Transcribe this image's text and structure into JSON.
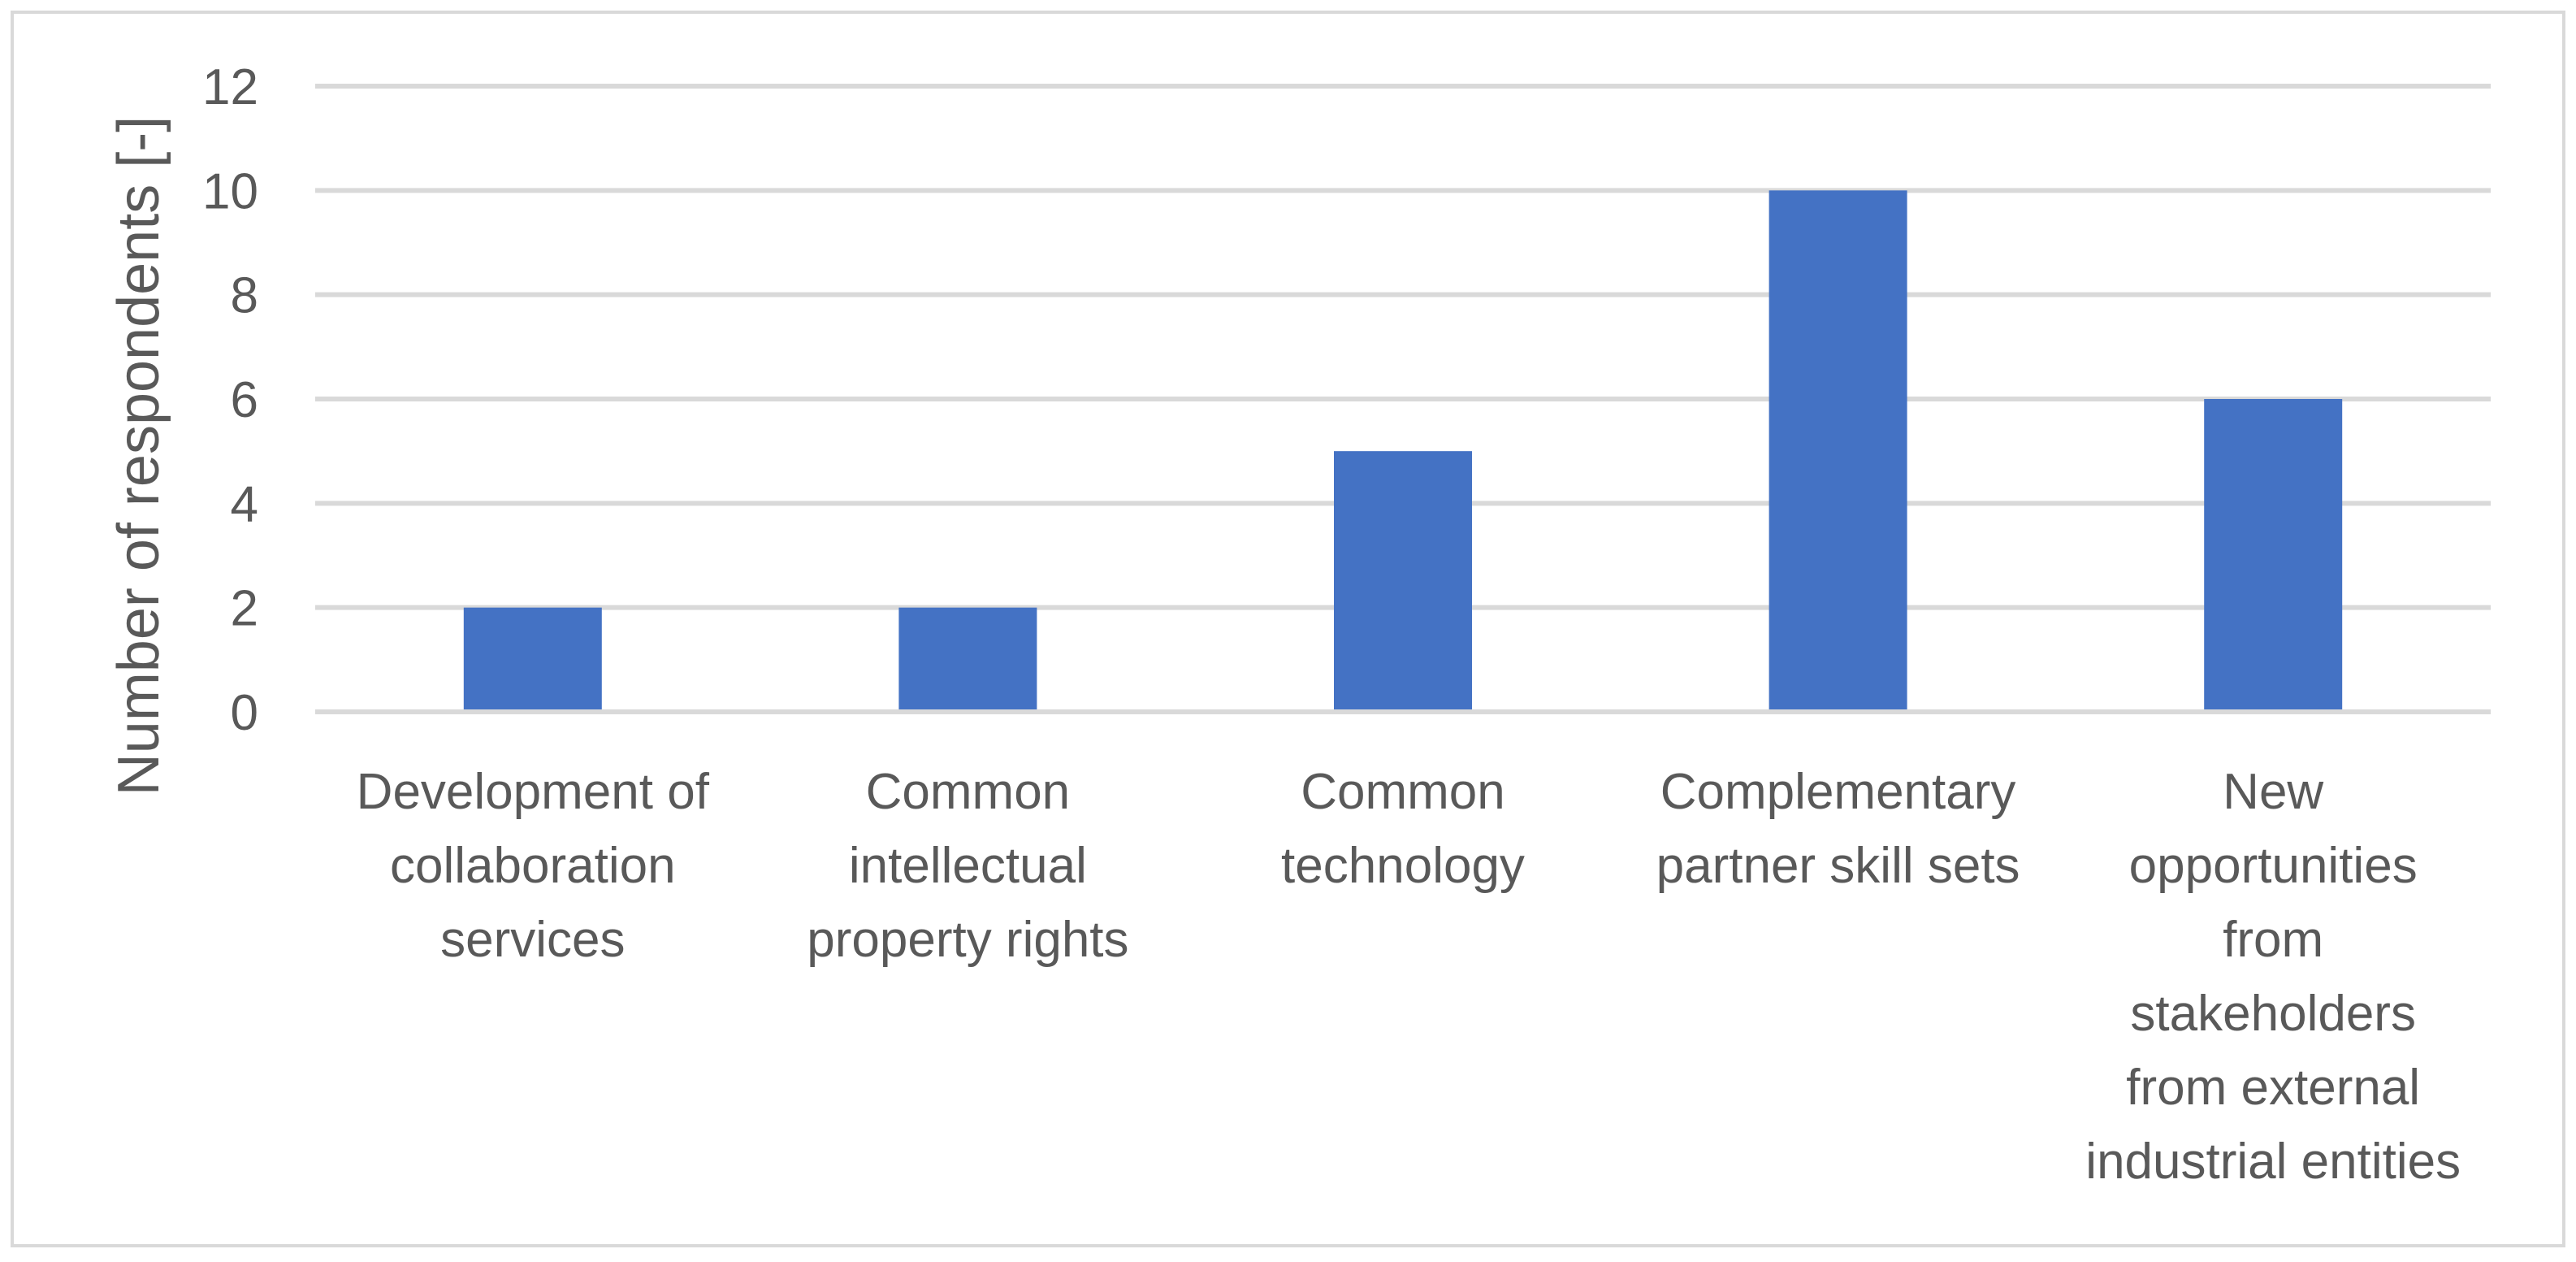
{
  "chart_data": {
    "type": "bar",
    "title": "",
    "xlabel": "",
    "ylabel": "Number of respondents [-]",
    "ylim": [
      0,
      12
    ],
    "yticks": [
      0,
      2,
      4,
      6,
      8,
      10,
      12
    ],
    "ytick_labels": [
      "0",
      "2",
      "4",
      "6",
      "8",
      "10",
      "12"
    ],
    "grid": true,
    "legend": "none",
    "categories": [
      [
        "Development of",
        "collaboration",
        "services"
      ],
      [
        "Common",
        "intellectual",
        "property rights"
      ],
      [
        "Common",
        "technology"
      ],
      [
        "Complementary",
        "partner skill sets"
      ],
      [
        "New",
        "opportunities",
        "from",
        "stakeholders",
        "from external",
        "industrial entities"
      ]
    ],
    "values": [
      2,
      2,
      5,
      10,
      6
    ],
    "colors": {
      "bar": "#4472C4",
      "grid": "#D9D9D9",
      "text": "#595959",
      "border": "#D9D9D9"
    }
  }
}
